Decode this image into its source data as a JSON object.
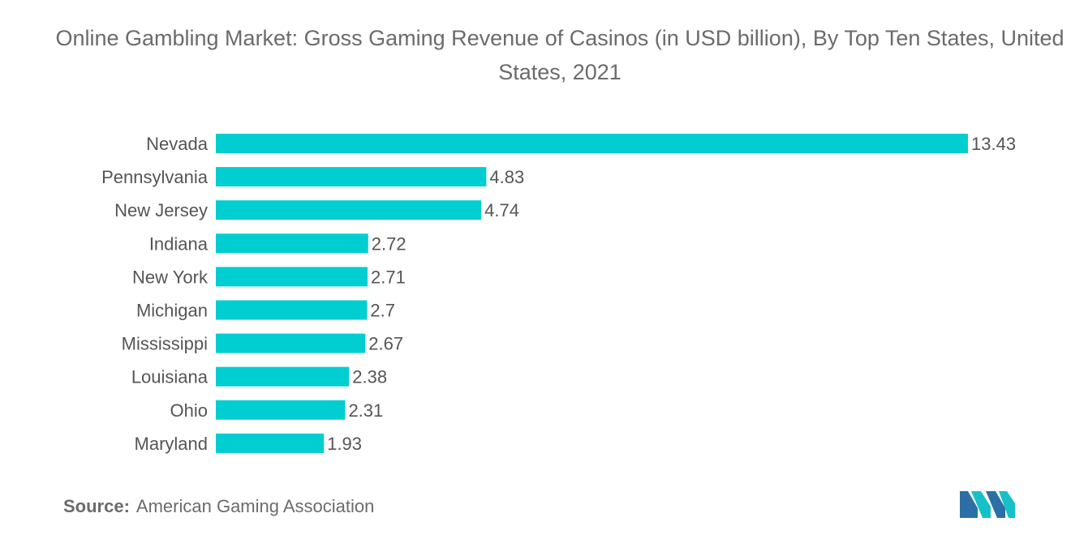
{
  "chart_data": {
    "type": "bar",
    "orientation": "horizontal",
    "title": "Online Gambling Market: Gross Gaming Revenue of Casinos (in USD billion), By Top Ten States, United States, 2021",
    "categories": [
      "Nevada",
      "Pennsylvania",
      "New Jersey",
      "Indiana",
      "New York",
      "Michigan",
      "Mississippi",
      "Louisiana",
      "Ohio",
      "Maryland"
    ],
    "values": [
      13.43,
      4.83,
      4.74,
      2.72,
      2.71,
      2.7,
      2.67,
      2.38,
      2.31,
      1.93
    ],
    "value_labels": [
      "13.43",
      "4.83",
      "4.74",
      "2.72",
      "2.71",
      "2.7",
      "2.67",
      "2.38",
      "2.31",
      "1.93"
    ],
    "xlim": [
      0,
      13.43
    ],
    "grid": false,
    "bar_color": "#00CED1",
    "xlabel": "",
    "ylabel": ""
  },
  "footer": {
    "source_label": "Source:",
    "source_text": "American Gaming Association"
  },
  "logo": {
    "icon": "mordor-intelligence-logo-icon",
    "colors": [
      "#2b6fa6",
      "#16c0c8"
    ]
  }
}
